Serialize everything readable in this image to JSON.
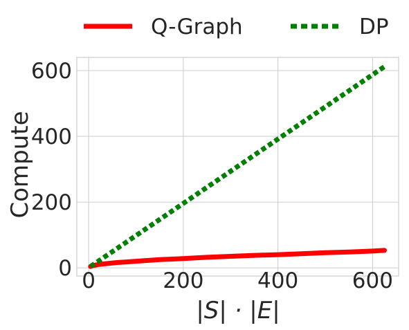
{
  "chart_data": {
    "type": "line",
    "xlabel": "|S| · |E|",
    "ylabel": "Compute",
    "xlim": [
      -25,
      655
    ],
    "ylim": [
      -25,
      640
    ],
    "xticks": [
      0,
      200,
      400,
      600
    ],
    "yticks": [
      0,
      200,
      400,
      600
    ],
    "grid": true,
    "legend_position": "top, above plot",
    "series": [
      {
        "name": "Q-Graph",
        "color": "#ff0000",
        "style": "solid",
        "x": [
          4,
          10,
          20,
          40,
          60,
          80,
          100,
          150,
          200,
          250,
          300,
          350,
          400,
          450,
          500,
          550,
          600,
          625
        ],
        "y": [
          4,
          7,
          10,
          13,
          16,
          18,
          20,
          25,
          28,
          32,
          35,
          38,
          40,
          43,
          46,
          48,
          51,
          53
        ]
      },
      {
        "name": "DP",
        "color": "#008000",
        "style": "dotted",
        "x": [
          4,
          625
        ],
        "y": [
          4,
          612
        ]
      }
    ]
  }
}
